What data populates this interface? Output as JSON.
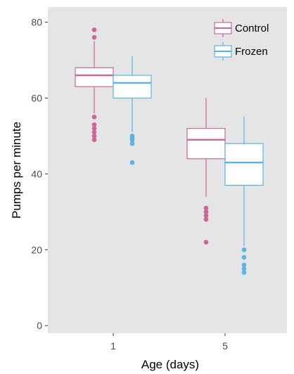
{
  "chart_data": {
    "type": "boxplot",
    "xlabel": "Age (days)",
    "ylabel": "Pumps per minute",
    "categories": [
      "1",
      "5"
    ],
    "ylim": [
      -2,
      84
    ],
    "yticks": [
      0,
      20,
      40,
      60,
      80
    ],
    "legend_position": "top-right",
    "grid": false,
    "background": "#e5e5e5",
    "series": [
      {
        "name": "Control",
        "color": "#cc6699",
        "boxes": [
          {
            "category": "1",
            "whisker_low": 56,
            "q1": 63,
            "median": 66,
            "q3": 68,
            "whisker_high": 75,
            "outliers": [
              78,
              76,
              55,
              53,
              52,
              51,
              50,
              49
            ]
          },
          {
            "category": "5",
            "whisker_low": 34,
            "q1": 44,
            "median": 49,
            "q3": 52,
            "whisker_high": 60,
            "outliers": [
              31,
              30,
              29,
              28,
              22
            ]
          }
        ]
      },
      {
        "name": "Frozen",
        "color": "#56b4e9",
        "boxes": [
          {
            "category": "1",
            "whisker_low": 51,
            "q1": 60,
            "median": 64,
            "q3": 66,
            "whisker_high": 71,
            "outliers": [
              50,
              49.5,
              49,
              48,
              43
            ]
          },
          {
            "category": "5",
            "whisker_low": 21,
            "q1": 37,
            "median": 43,
            "q3": 48,
            "whisker_high": 55,
            "outliers": [
              20,
              18,
              16,
              15,
              14
            ]
          }
        ]
      }
    ]
  }
}
